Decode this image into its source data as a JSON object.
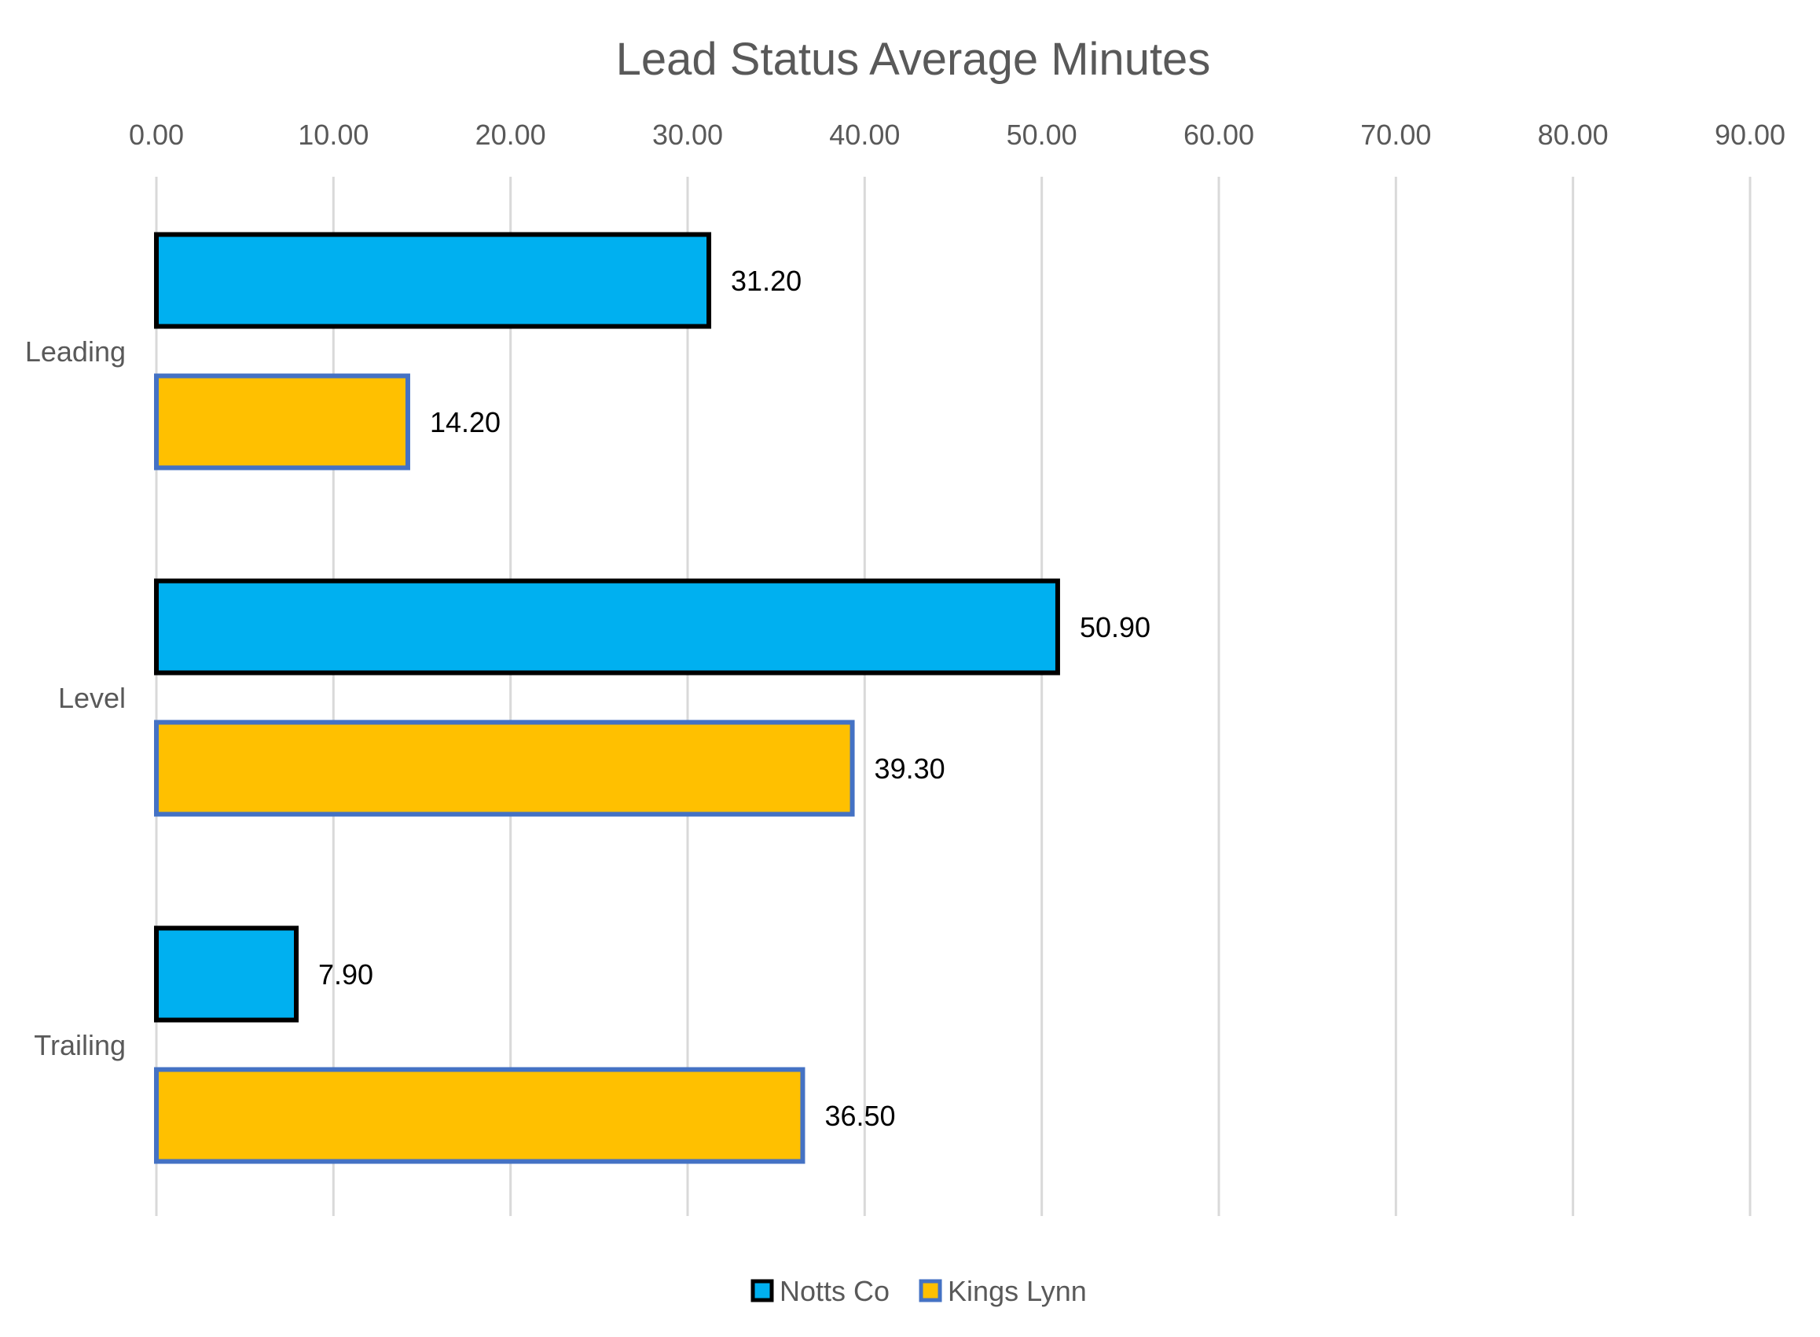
{
  "chart_data": {
    "type": "bar",
    "orientation": "horizontal",
    "title": "Lead Status Average Minutes",
    "categories": [
      "Leading",
      "Level",
      "Trailing"
    ],
    "series": [
      {
        "name": "Notts Co",
        "values": [
          31.2,
          50.9,
          7.9
        ],
        "value_labels": [
          "31.20",
          "50.90",
          "7.90"
        ],
        "fill": "#00B0F0",
        "stroke": "#000000"
      },
      {
        "name": "Kings Lynn",
        "values": [
          14.2,
          39.3,
          36.5
        ],
        "value_labels": [
          "14.20",
          "39.30",
          "36.50"
        ],
        "fill": "#FFC000",
        "stroke": "#4472C4"
      }
    ],
    "xlim": [
      0,
      90
    ],
    "x_ticks": [
      0,
      10,
      20,
      30,
      40,
      50,
      60,
      70,
      80,
      90
    ],
    "x_tick_labels": [
      "0.00",
      "10.00",
      "20.00",
      "30.00",
      "40.00",
      "50.00",
      "60.00",
      "70.00",
      "80.00",
      "90.00"
    ],
    "x_axis_position": "top",
    "grid": true,
    "legend": "bottom"
  }
}
